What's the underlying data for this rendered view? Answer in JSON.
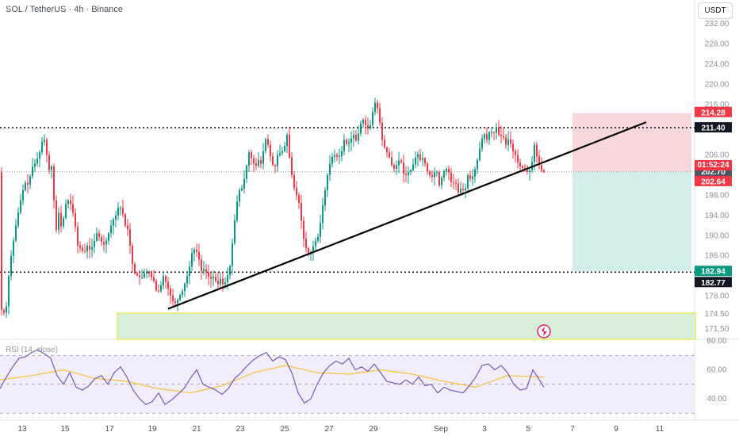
{
  "header": {
    "symbol_line": "SOL / TetherUS · 4h · Binance",
    "currency": "USDT"
  },
  "chart_data": {
    "type": "candlestick",
    "symbol": "SOL / TetherUS",
    "interval": "4h",
    "exchange": "Binance",
    "price_axis": {
      "ticks": [
        232.0,
        228.0,
        224.0,
        220.0,
        216.0,
        206.0,
        198.0,
        194.0,
        190.0,
        186.0,
        178.0,
        174.5,
        171.5
      ],
      "ylim": [
        171.0,
        234.0
      ]
    },
    "time_axis": {
      "labels": [
        "13",
        "15",
        "17",
        "19",
        "21",
        "23",
        "25",
        "27",
        "29",
        "Sep",
        "3",
        "5",
        "7",
        "9",
        "11"
      ]
    },
    "price_path": [
      [
        0,
        175.8
      ],
      [
        3,
        175.0
      ],
      [
        6,
        174.6
      ],
      [
        8,
        176.0
      ],
      [
        11,
        182.0
      ],
      [
        14,
        186.0
      ],
      [
        17,
        189.0
      ],
      [
        20,
        192.0
      ],
      [
        24,
        195.5
      ],
      [
        28,
        198.5
      ],
      [
        32,
        200.5
      ],
      [
        36,
        200.0
      ],
      [
        40,
        203.5
      ],
      [
        45,
        204.5
      ],
      [
        50,
        206.5
      ],
      [
        55,
        210.0
      ],
      [
        58,
        207.0
      ],
      [
        62,
        203.0
      ],
      [
        66,
        204.0
      ],
      [
        70,
        190.0
      ],
      [
        74,
        194.5
      ],
      [
        78,
        191.0
      ],
      [
        82,
        196.0
      ],
      [
        86,
        197.0
      ],
      [
        90,
        196.0
      ],
      [
        94,
        193.0
      ],
      [
        98,
        188.0
      ],
      [
        102,
        187.5
      ],
      [
        106,
        186.5
      ],
      [
        110,
        188.0
      ],
      [
        114,
        187.0
      ],
      [
        118,
        188.5
      ],
      [
        122,
        190.5
      ],
      [
        126,
        189.5
      ],
      [
        130,
        188.0
      ],
      [
        134,
        189.0
      ],
      [
        138,
        191.0
      ],
      [
        142,
        193.0
      ],
      [
        146,
        194.0
      ],
      [
        150,
        196.0
      ],
      [
        154,
        195.0
      ],
      [
        158,
        192.0
      ],
      [
        162,
        191.0
      ],
      [
        166,
        185.0
      ],
      [
        170,
        182.5
      ],
      [
        174,
        182.0
      ],
      [
        178,
        181.5
      ],
      [
        182,
        182.5
      ],
      [
        186,
        183.0
      ],
      [
        190,
        182.0
      ],
      [
        194,
        181.0
      ],
      [
        198,
        178.5
      ],
      [
        202,
        179.5
      ],
      [
        206,
        182.0
      ],
      [
        210,
        180.5
      ],
      [
        214,
        178.5
      ],
      [
        218,
        177.0
      ],
      [
        222,
        176.5
      ],
      [
        226,
        178.0
      ],
      [
        230,
        179.0
      ],
      [
        234,
        181.0
      ],
      [
        238,
        183.0
      ],
      [
        242,
        186.5
      ],
      [
        246,
        187.5
      ],
      [
        250,
        186.0
      ],
      [
        254,
        183.0
      ],
      [
        258,
        183.5
      ],
      [
        262,
        182.0
      ],
      [
        266,
        181.5
      ],
      [
        270,
        182.0
      ],
      [
        274,
        180.0
      ],
      [
        278,
        181.5
      ],
      [
        282,
        180.0
      ],
      [
        286,
        181.5
      ],
      [
        290,
        184.0
      ],
      [
        294,
        190.0
      ],
      [
        298,
        196.0
      ],
      [
        302,
        199.0
      ],
      [
        306,
        199.5
      ],
      [
        310,
        203.0
      ],
      [
        314,
        206.5
      ],
      [
        318,
        205.0
      ],
      [
        322,
        203.5
      ],
      [
        326,
        205.0
      ],
      [
        330,
        204.0
      ],
      [
        334,
        209.5
      ],
      [
        338,
        208.0
      ],
      [
        342,
        205.0
      ],
      [
        346,
        203.0
      ],
      [
        350,
        206.0
      ],
      [
        354,
        206.5
      ],
      [
        358,
        207.0
      ],
      [
        362,
        210.0
      ],
      [
        366,
        204.0
      ],
      [
        370,
        200.0
      ],
      [
        374,
        198.0
      ],
      [
        378,
        196.0
      ],
      [
        382,
        190.0
      ],
      [
        386,
        187.5
      ],
      [
        390,
        186.0
      ],
      [
        394,
        187.5
      ],
      [
        398,
        189.0
      ],
      [
        402,
        190.0
      ],
      [
        406,
        195.0
      ],
      [
        410,
        199.0
      ],
      [
        414,
        203.0
      ],
      [
        418,
        205.5
      ],
      [
        422,
        206.0
      ],
      [
        426,
        205.5
      ],
      [
        430,
        206.0
      ],
      [
        434,
        209.0
      ],
      [
        438,
        208.0
      ],
      [
        442,
        209.0
      ],
      [
        446,
        210.0
      ],
      [
        450,
        208.5
      ],
      [
        454,
        212.0
      ],
      [
        458,
        213.0
      ],
      [
        462,
        211.5
      ],
      [
        466,
        211.0
      ],
      [
        470,
        214.5
      ],
      [
        474,
        217.0
      ],
      [
        478,
        213.5
      ],
      [
        482,
        209.0
      ],
      [
        486,
        207.0
      ],
      [
        490,
        206.0
      ],
      [
        494,
        204.0
      ],
      [
        498,
        203.0
      ],
      [
        502,
        205.0
      ],
      [
        506,
        204.5
      ],
      [
        510,
        201.5
      ],
      [
        514,
        202.5
      ],
      [
        518,
        203.0
      ],
      [
        522,
        204.5
      ],
      [
        526,
        206.5
      ],
      [
        530,
        205.0
      ],
      [
        534,
        205.5
      ],
      [
        538,
        203.0
      ],
      [
        542,
        202.0
      ],
      [
        546,
        201.5
      ],
      [
        550,
        203.5
      ],
      [
        554,
        200.0
      ],
      [
        558,
        202.0
      ],
      [
        562,
        203.5
      ],
      [
        566,
        202.5
      ],
      [
        570,
        200.0
      ],
      [
        574,
        201.0
      ],
      [
        578,
        198.5
      ],
      [
        582,
        199.5
      ],
      [
        586,
        198.5
      ],
      [
        590,
        202.0
      ],
      [
        594,
        201.0
      ],
      [
        598,
        202.5
      ],
      [
        602,
        205.0
      ],
      [
        606,
        208.0
      ],
      [
        610,
        210.5
      ],
      [
        614,
        209.0
      ],
      [
        618,
        211.0
      ],
      [
        622,
        210.0
      ],
      [
        626,
        211.5
      ],
      [
        630,
        209.5
      ],
      [
        634,
        210.0
      ],
      [
        638,
        208.0
      ],
      [
        642,
        209.5
      ],
      [
        646,
        207.0
      ],
      [
        650,
        206.0
      ],
      [
        654,
        204.0
      ],
      [
        658,
        203.5
      ],
      [
        662,
        203.0
      ],
      [
        666,
        202.5
      ],
      [
        670,
        203.5
      ],
      [
        674,
        208.0
      ],
      [
        678,
        205.0
      ],
      [
        682,
        203.0
      ],
      [
        686,
        202.6
      ]
    ],
    "horizontal_levels": [
      211.4,
      182.77
    ],
    "trendline": {
      "from": [
        212,
        175.5
      ],
      "to": [
        815,
        212.5
      ]
    },
    "position_tool": {
      "x_range": [
        722,
        872
      ],
      "take_profit": 214.28,
      "entry": 202.64,
      "stop": 182.94
    },
    "support_zone": {
      "x_range": [
        148,
        877
      ],
      "price_range": [
        171.0,
        173.8
      ]
    },
    "price_labels": [
      {
        "text": "214.28",
        "price": 214.28,
        "color": "#f23645"
      },
      {
        "text": "211.40",
        "price": 211.4,
        "color": "#131722"
      },
      {
        "text": "202.70",
        "price": 202.7,
        "color": "#4e5460"
      },
      {
        "text": "202.64",
        "price": 202.64,
        "color": "#f23645"
      },
      {
        "text": "182.94",
        "price": 182.94,
        "color": "#089981"
      },
      {
        "text": "182.77",
        "price": 182.77,
        "color": "#131722"
      }
    ],
    "countdown": "01:52:24",
    "rsi": {
      "label": "RSI (14, close)",
      "ticks": [
        80.0,
        60.0,
        40.0
      ],
      "ylim": [
        27,
        82
      ],
      "bands": [
        70,
        50,
        30
      ],
      "values": [
        [
          0,
          47
        ],
        [
          8,
          55
        ],
        [
          16,
          62
        ],
        [
          24,
          68
        ],
        [
          32,
          69
        ],
        [
          40,
          72
        ],
        [
          48,
          74
        ],
        [
          56,
          71
        ],
        [
          64,
          68
        ],
        [
          72,
          56
        ],
        [
          80,
          50
        ],
        [
          88,
          58
        ],
        [
          96,
          48
        ],
        [
          104,
          46
        ],
        [
          112,
          49
        ],
        [
          120,
          54
        ],
        [
          128,
          56
        ],
        [
          136,
          50
        ],
        [
          144,
          58
        ],
        [
          152,
          62
        ],
        [
          160,
          55
        ],
        [
          168,
          46
        ],
        [
          176,
          40
        ],
        [
          184,
          36
        ],
        [
          192,
          38
        ],
        [
          200,
          44
        ],
        [
          208,
          36
        ],
        [
          216,
          39
        ],
        [
          224,
          43
        ],
        [
          232,
          47
        ],
        [
          240,
          54
        ],
        [
          248,
          60
        ],
        [
          256,
          50
        ],
        [
          264,
          48
        ],
        [
          272,
          46
        ],
        [
          280,
          43
        ],
        [
          288,
          47
        ],
        [
          296,
          54
        ],
        [
          304,
          58
        ],
        [
          312,
          63
        ],
        [
          320,
          67
        ],
        [
          328,
          70
        ],
        [
          336,
          72
        ],
        [
          344,
          66
        ],
        [
          352,
          69
        ],
        [
          360,
          67
        ],
        [
          368,
          58
        ],
        [
          376,
          44
        ],
        [
          384,
          37
        ],
        [
          392,
          40
        ],
        [
          400,
          50
        ],
        [
          408,
          58
        ],
        [
          416,
          63
        ],
        [
          424,
          66
        ],
        [
          432,
          64
        ],
        [
          440,
          68
        ],
        [
          448,
          60
        ],
        [
          456,
          62
        ],
        [
          464,
          59
        ],
        [
          472,
          64
        ],
        [
          480,
          58
        ],
        [
          488,
          52
        ],
        [
          496,
          51
        ],
        [
          504,
          50
        ],
        [
          512,
          53
        ],
        [
          520,
          50
        ],
        [
          528,
          55
        ],
        [
          536,
          49
        ],
        [
          544,
          50
        ],
        [
          552,
          44
        ],
        [
          560,
          48
        ],
        [
          568,
          46
        ],
        [
          576,
          45
        ],
        [
          584,
          44
        ],
        [
          592,
          49
        ],
        [
          600,
          55
        ],
        [
          608,
          63
        ],
        [
          616,
          64
        ],
        [
          624,
          60
        ],
        [
          632,
          63
        ],
        [
          640,
          58
        ],
        [
          648,
          50
        ],
        [
          656,
          46
        ],
        [
          664,
          47
        ],
        [
          672,
          60
        ],
        [
          678,
          55
        ],
        [
          686,
          48
        ]
      ],
      "ma": [
        [
          0,
          53
        ],
        [
          40,
          56
        ],
        [
          80,
          60
        ],
        [
          120,
          54
        ],
        [
          160,
          52
        ],
        [
          200,
          47
        ],
        [
          240,
          44
        ],
        [
          280,
          49
        ],
        [
          320,
          58
        ],
        [
          360,
          63
        ],
        [
          400,
          58
        ],
        [
          440,
          57
        ],
        [
          480,
          60
        ],
        [
          520,
          57
        ],
        [
          560,
          52
        ],
        [
          600,
          48
        ],
        [
          640,
          56
        ],
        [
          686,
          55
        ]
      ]
    }
  }
}
